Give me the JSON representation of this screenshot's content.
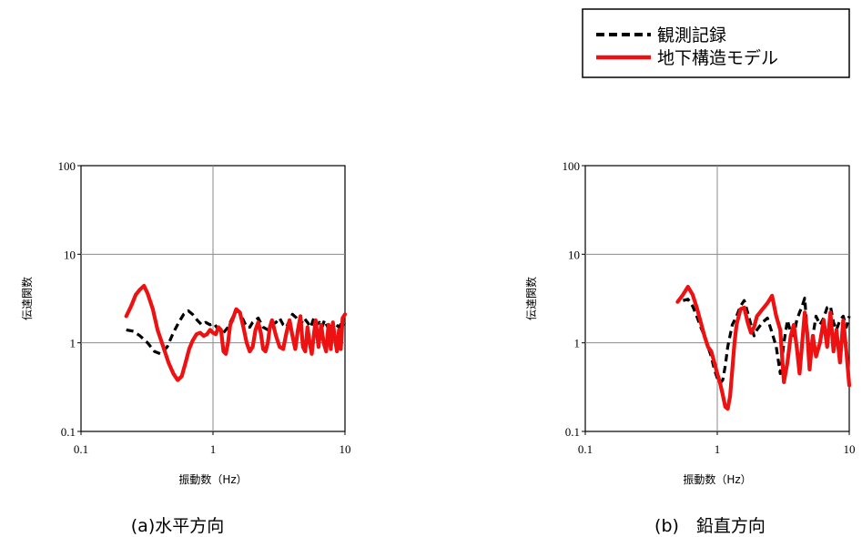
{
  "legend": {
    "placement": "top-right",
    "entries": [
      {
        "label": "観測記録",
        "color": "#000000",
        "style": "dashed"
      },
      {
        "label": "地下構造モデル",
        "color": "#ee1111",
        "style": "solid"
      }
    ]
  },
  "chart_data": [
    {
      "type": "line",
      "caption": "(a)水平方向",
      "xlabel": "振動数（Hz）",
      "ylabel": "伝達関数",
      "xscale": "log",
      "yscale": "log",
      "xlim": [
        0.1,
        10
      ],
      "ylim": [
        0.1,
        100
      ],
      "xticks": [
        "0.1",
        "1",
        "10"
      ],
      "yticks": [
        "0.1",
        "1",
        "10",
        "100"
      ],
      "grid": true,
      "series": [
        {
          "name": "観測記録",
          "color": "#000000",
          "style": "dashed",
          "x": [
            0.22,
            0.25,
            0.28,
            0.32,
            0.36,
            0.4,
            0.45,
            0.5,
            0.55,
            0.6,
            0.65,
            0.7,
            0.76,
            0.82,
            0.88,
            0.95,
            1.02,
            1.1,
            1.2,
            1.3,
            1.4,
            1.5,
            1.6,
            1.7,
            1.8,
            1.9,
            2.0,
            2.2,
            2.4,
            2.6,
            2.8,
            3.0,
            3.2,
            3.4,
            3.6,
            3.8,
            4.0,
            4.3,
            4.6,
            4.9,
            5.2,
            5.5,
            5.8,
            6.1,
            6.4,
            6.7,
            7.0,
            7.4,
            7.8,
            8.2,
            8.6,
            9.0,
            9.5,
            10.0
          ],
          "y": [
            1.4,
            1.35,
            1.2,
            1.0,
            0.8,
            0.75,
            0.9,
            1.3,
            1.7,
            2.1,
            2.3,
            2.1,
            1.8,
            1.6,
            1.7,
            1.6,
            1.65,
            1.4,
            1.3,
            1.5,
            1.9,
            2.3,
            2.2,
            1.8,
            1.5,
            1.5,
            1.7,
            1.9,
            1.5,
            1.4,
            1.6,
            1.7,
            1.9,
            1.6,
            1.5,
            1.8,
            2.1,
            1.9,
            1.6,
            1.9,
            1.7,
            1.5,
            1.9,
            1.6,
            1.7,
            1.5,
            1.8,
            1.5,
            1.7,
            1.4,
            1.6,
            1.5,
            1.7,
            1.6
          ]
        },
        {
          "name": "地下構造モデル",
          "color": "#ee1111",
          "style": "solid",
          "x": [
            0.22,
            0.24,
            0.26,
            0.28,
            0.3,
            0.32,
            0.35,
            0.38,
            0.42,
            0.46,
            0.5,
            0.54,
            0.58,
            0.62,
            0.66,
            0.7,
            0.75,
            0.8,
            0.85,
            0.9,
            0.95,
            1.0,
            1.05,
            1.1,
            1.15,
            1.2,
            1.25,
            1.3,
            1.35,
            1.4,
            1.5,
            1.6,
            1.7,
            1.8,
            1.9,
            2.0,
            2.1,
            2.2,
            2.3,
            2.4,
            2.5,
            2.6,
            2.7,
            2.8,
            3.0,
            3.2,
            3.4,
            3.6,
            3.8,
            4.0,
            4.2,
            4.4,
            4.6,
            4.8,
            5.0,
            5.2,
            5.4,
            5.6,
            5.8,
            6.0,
            6.3,
            6.6,
            6.9,
            7.2,
            7.5,
            7.8,
            8.1,
            8.4,
            8.7,
            9.0,
            9.3,
            9.6,
            10.0
          ],
          "y": [
            2.0,
            2.6,
            3.5,
            4.0,
            4.4,
            3.6,
            2.4,
            1.4,
            0.9,
            0.6,
            0.45,
            0.38,
            0.42,
            0.6,
            0.85,
            1.05,
            1.25,
            1.3,
            1.2,
            1.25,
            1.4,
            1.3,
            1.25,
            1.5,
            1.4,
            0.8,
            0.75,
            1.0,
            1.6,
            1.8,
            2.4,
            2.2,
            1.5,
            1.0,
            0.8,
            0.9,
            1.4,
            1.7,
            1.3,
            0.85,
            0.8,
            1.0,
            1.5,
            1.8,
            1.2,
            0.9,
            0.85,
            1.3,
            1.8,
            1.2,
            0.85,
            1.4,
            2.0,
            0.9,
            0.8,
            1.5,
            1.0,
            0.75,
            1.2,
            1.8,
            0.9,
            1.6,
            1.0,
            0.8,
            1.6,
            0.85,
            1.7,
            1.1,
            0.8,
            1.4,
            0.85,
            1.9,
            2.1
          ]
        }
      ]
    },
    {
      "type": "line",
      "caption": "(b)　鉛直方向",
      "xlabel": "振動数（Hz）",
      "ylabel": "伝達関数",
      "xscale": "log",
      "yscale": "log",
      "xlim": [
        0.1,
        10
      ],
      "ylim": [
        0.1,
        100
      ],
      "xticks": [
        "0.1",
        "1",
        "10"
      ],
      "yticks": [
        "0.1",
        "1",
        "10",
        "100"
      ],
      "grid": true,
      "series": [
        {
          "name": "観測記録",
          "color": "#000000",
          "style": "dashed",
          "x": [
            0.55,
            0.6,
            0.65,
            0.7,
            0.75,
            0.8,
            0.85,
            0.9,
            0.95,
            1.0,
            1.05,
            1.1,
            1.15,
            1.2,
            1.3,
            1.4,
            1.5,
            1.6,
            1.7,
            1.8,
            1.9,
            2.0,
            2.2,
            2.4,
            2.6,
            2.8,
            3.0,
            3.2,
            3.4,
            3.6,
            3.8,
            4.0,
            4.2,
            4.4,
            4.6,
            4.8,
            5.0,
            5.3,
            5.6,
            6.0,
            6.4,
            6.8,
            7.2,
            7.6,
            8.0,
            8.5,
            9.0,
            9.5,
            10.0
          ],
          "y": [
            3.0,
            3.1,
            2.6,
            2.0,
            1.5,
            1.2,
            0.9,
            0.7,
            0.5,
            0.4,
            0.35,
            0.38,
            0.55,
            0.9,
            1.6,
            2.0,
            2.6,
            3.0,
            2.2,
            1.6,
            1.2,
            1.4,
            1.7,
            1.9,
            1.3,
            0.9,
            0.45,
            1.0,
            1.8,
            1.3,
            1.2,
            1.8,
            2.2,
            2.6,
            3.2,
            1.3,
            0.8,
            1.2,
            2.0,
            1.6,
            1.9,
            2.5,
            2.6,
            1.7,
            1.4,
            1.8,
            2.0,
            1.5,
            2.0
          ]
        },
        {
          "name": "地下構造モデル",
          "color": "#ee1111",
          "style": "solid",
          "x": [
            0.5,
            0.55,
            0.6,
            0.65,
            0.7,
            0.75,
            0.8,
            0.85,
            0.9,
            0.95,
            1.0,
            1.05,
            1.1,
            1.15,
            1.2,
            1.25,
            1.3,
            1.35,
            1.4,
            1.5,
            1.6,
            1.7,
            1.8,
            1.9,
            2.0,
            2.2,
            2.4,
            2.6,
            2.8,
            3.0,
            3.2,
            3.4,
            3.6,
            3.8,
            4.0,
            4.2,
            4.4,
            4.6,
            4.8,
            5.0,
            5.3,
            5.6,
            6.0,
            6.4,
            6.8,
            7.2,
            7.6,
            8.0,
            8.5,
            9.0,
            9.5,
            10.0
          ],
          "y": [
            2.9,
            3.5,
            4.3,
            3.5,
            2.5,
            1.7,
            1.2,
            0.9,
            0.8,
            0.6,
            0.45,
            0.35,
            0.26,
            0.19,
            0.18,
            0.25,
            0.5,
            1.0,
            1.6,
            2.4,
            2.5,
            1.7,
            1.3,
            1.5,
            2.0,
            2.4,
            2.8,
            3.4,
            2.0,
            1.4,
            0.36,
            0.6,
            1.2,
            1.6,
            0.9,
            0.45,
            1.0,
            2.2,
            1.3,
            0.5,
            1.2,
            0.7,
            1.0,
            1.8,
            0.9,
            2.2,
            0.8,
            1.4,
            0.6,
            1.8,
            0.8,
            0.33
          ]
        }
      ]
    }
  ]
}
